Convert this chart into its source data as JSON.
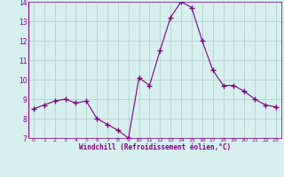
{
  "x": [
    0,
    1,
    2,
    3,
    4,
    5,
    6,
    7,
    8,
    9,
    10,
    11,
    12,
    13,
    14,
    15,
    16,
    17,
    18,
    19,
    20,
    21,
    22,
    23
  ],
  "y": [
    8.5,
    8.7,
    8.9,
    9.0,
    8.8,
    8.9,
    8.0,
    7.7,
    7.4,
    7.0,
    10.1,
    9.7,
    11.5,
    13.2,
    14.0,
    13.7,
    12.0,
    10.5,
    9.7,
    9.7,
    9.4,
    9.0,
    8.7,
    8.6
  ],
  "xlim": [
    -0.5,
    23.5
  ],
  "ylim": [
    7,
    14
  ],
  "yticks": [
    7,
    8,
    9,
    10,
    11,
    12,
    13,
    14
  ],
  "xticks": [
    0,
    1,
    2,
    3,
    4,
    5,
    6,
    7,
    8,
    9,
    10,
    11,
    12,
    13,
    14,
    15,
    16,
    17,
    18,
    19,
    20,
    21,
    22,
    23
  ],
  "xlabel": "Windchill (Refroidissement éolien,°C)",
  "line_color": "#800080",
  "marker": "+",
  "marker_size": 4,
  "bg_color": "#d6f0f0",
  "grid_color": "#b0c8c8",
  "tick_color": "#800080",
  "label_color": "#800080"
}
